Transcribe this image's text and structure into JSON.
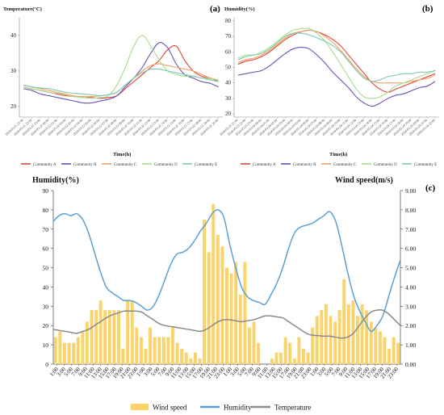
{
  "chart_data": [
    {
      "id": "a",
      "panel_label": "(a)",
      "type": "line",
      "ylabel": "Temperature(°C)",
      "xlabel": "Time(h)",
      "ylim": [
        17,
        45
      ],
      "y_ticks": [
        20,
        30,
        40
      ],
      "x_tick_labels": [
        "2024-05-21 21:00",
        "2024-05-21 22:00",
        "2024-05-21 23:00",
        "2024-05-22 00:00",
        "2024-05-22 01:00",
        "2024-05-22 02:00",
        "2024-05-22 03:00",
        "2024-05-22 04:00",
        "2024-05-22 05:00",
        "2024-05-22 06:00",
        "2024-05-22 07:00",
        "2024-05-22 08:00",
        "2024-05-22 09:00",
        "2024-05-22 10:00",
        "2024-05-22 11:00",
        "2024-05-22 12:00",
        "2024-05-22 13:00",
        "2024-05-22 14:00",
        "2024-05-22 15:00",
        "2024-05-22 16:00",
        "2024-05-22 17:00",
        "2024-05-22 18:00",
        "2024-05-22 19:00",
        "2024-05-22 20:00"
      ],
      "series": [
        {
          "name": "Community A",
          "color": "#e0443c",
          "values": [
            25.5,
            25,
            24.5,
            24,
            23.5,
            23,
            22.8,
            22.5,
            22.5,
            22.3,
            22.5,
            23,
            25,
            27,
            29,
            31,
            33,
            36,
            37,
            33,
            30,
            28.5,
            28,
            27
          ]
        },
        {
          "name": "Community B",
          "color": "#6a4fb8",
          "values": [
            25,
            24.5,
            23.5,
            23,
            22.5,
            22,
            21.5,
            21,
            21,
            21.5,
            22,
            23,
            25.5,
            28,
            31,
            35,
            38,
            36.5,
            32,
            29,
            28,
            27,
            26.5,
            25.5
          ]
        },
        {
          "name": "Community C",
          "color": "#f0a060",
          "values": [
            26,
            25.5,
            25,
            24.5,
            24,
            23.5,
            23,
            22.8,
            22.8,
            23,
            23.3,
            24,
            26,
            28,
            30,
            31.5,
            32,
            31.5,
            31,
            30.5,
            30,
            29,
            28,
            27.5
          ]
        },
        {
          "name": "Community D",
          "color": "#a8dc90",
          "values": [
            25.5,
            25,
            24.5,
            24,
            23.7,
            23.2,
            22.8,
            22.5,
            22.3,
            22.5,
            23,
            26,
            31,
            37,
            40,
            37,
            33,
            30,
            29,
            28.5,
            28.5,
            28,
            27.8,
            27.5
          ]
        },
        {
          "name": "Community E",
          "color": "#7cc8b0",
          "values": [
            26,
            25.5,
            25.2,
            25,
            24.5,
            24,
            23.7,
            23.5,
            23.3,
            23,
            23.3,
            24,
            26,
            28,
            29.5,
            30.5,
            30.5,
            30,
            29.5,
            29,
            28.5,
            28,
            27.5,
            27
          ]
        }
      ]
    },
    {
      "id": "b",
      "panel_label": "(b)",
      "type": "line",
      "ylabel": "Humidity(%)",
      "xlabel": "Time(h)",
      "ylim": [
        18,
        82
      ],
      "y_ticks": [
        20,
        30,
        40,
        50,
        60,
        70,
        80
      ],
      "x_tick_labels": [
        "2024-05-23 21:00",
        "2024-05-23 22:00",
        "2024-05-23 23:00",
        "2024-05-24 00:00",
        "2024-05-24 01:00",
        "2024-05-24 02:00",
        "2024-05-24 03:00",
        "2024-05-24 04:00",
        "2024-05-24 05:00",
        "2024-05-24 06:00",
        "2024-05-24 07:00",
        "2024-05-24 08:00",
        "2024-05-24 09:00",
        "2024-05-24 10:00",
        "2024-05-24 11:00",
        "2024-05-24 12:00",
        "2024-05-24 13:00",
        "2024-05-24 14:00",
        "2024-05-24 15:00",
        "2024-05-24 16:00",
        "2024-05-24 17:00",
        "2024-05-24 18:00",
        "2024-05-24 19:00",
        "2024-05-24 20:00",
        "2024-05-24 21:00",
        "2024-05-24 22:00"
      ],
      "series": [
        {
          "name": "Community A",
          "color": "#e0443c",
          "values": [
            52,
            54,
            55,
            57,
            60,
            64,
            68,
            71,
            73,
            74,
            73,
            71,
            68,
            64,
            58,
            52,
            46,
            40,
            36,
            34,
            36,
            38,
            40,
            42,
            44,
            46
          ]
        },
        {
          "name": "Community B",
          "color": "#6a4fb8",
          "values": [
            45,
            46,
            47,
            48,
            51,
            55,
            59,
            62,
            63,
            62,
            58,
            53,
            47,
            42,
            37,
            31,
            27,
            25,
            27,
            30,
            32,
            33,
            35,
            37,
            38,
            41
          ]
        },
        {
          "name": "Community C",
          "color": "#f0a060",
          "values": [
            53,
            55,
            56,
            58,
            61,
            65,
            69,
            72,
            73,
            74,
            73,
            70,
            66,
            61,
            55,
            49,
            44,
            41,
            40,
            40,
            40,
            40,
            41,
            42,
            43,
            45
          ]
        },
        {
          "name": "Community D",
          "color": "#a8dc90",
          "values": [
            56,
            58,
            58,
            60,
            63,
            67,
            71,
            74,
            75,
            75,
            72,
            67,
            60,
            52,
            44,
            36,
            31,
            30,
            31,
            34,
            38,
            40,
            42,
            44,
            46,
            48
          ]
        },
        {
          "name": "Community E",
          "color": "#7cc8b0",
          "values": [
            55,
            57,
            58,
            59,
            62,
            66,
            70,
            72,
            72,
            71,
            69,
            67,
            64,
            60,
            54,
            48,
            43,
            41,
            42,
            44,
            45,
            46,
            46,
            47,
            47,
            48
          ]
        }
      ]
    },
    {
      "id": "c",
      "panel_label": "(c)",
      "type": "bar",
      "ylabel_left": "Humidity(%)",
      "ylabel_right": "Wind speed(m/s)",
      "ylim_left": [
        0,
        90
      ],
      "ylim_right": [
        0,
        9
      ],
      "y_ticks_left": [
        0,
        10,
        20,
        30,
        40,
        50,
        60,
        70,
        80,
        90
      ],
      "y_tick_labels_right": [
        "0.00",
        "1.00",
        "2.00",
        "3.00",
        "4.00",
        "5.00",
        "6.00",
        "7.00",
        "8.00",
        "9.00"
      ],
      "x_tick_labels": [
        "1:00",
        "3:00",
        "5:00",
        "7:00",
        "9:00",
        "11:00",
        "13:00",
        "15:00",
        "17:00",
        "19:00",
        "21:00",
        "23:00",
        "1:00",
        "3:00",
        "5:00",
        "7:00",
        "9:00",
        "11:00",
        "13:00",
        "15:00",
        "17:00",
        "19:00",
        "21:00",
        "23:00",
        "1:00",
        "3:00",
        "5:00",
        "7:00",
        "9:00",
        "11:00",
        "13:00",
        "15:00",
        "17:00",
        "19:00",
        "21:00",
        "23:00",
        "1:00",
        "3:00",
        "5:00",
        "7:00",
        "9:00",
        "11:00",
        "13:00",
        "15:00",
        "17:00",
        "19:00",
        "21:00",
        "23:00"
      ],
      "wind_speed": [
        1.4,
        1.7,
        1.1,
        1.1,
        1.1,
        1.4,
        1.7,
        2.2,
        2.8,
        2.8,
        3.3,
        2.8,
        2.8,
        2.8,
        2.8,
        0.8,
        3.3,
        3.3,
        1.9,
        1.4,
        0.8,
        1.9,
        1.4,
        1.4,
        1.4,
        1.4,
        1.9,
        1.1,
        0.8,
        0.6,
        0.3,
        0.6,
        0.3,
        7.5,
        5.8,
        8.3,
        6.7,
        6.1,
        5.0,
        4.7,
        5.3,
        3.6,
        5.3,
        1.9,
        2.2,
        1.1,
        0.0,
        0.0,
        0.3,
        0.6,
        0.6,
        1.4,
        1.1,
        0.3,
        1.4,
        0.8,
        0.6,
        1.9,
        2.5,
        2.8,
        3.1,
        2.5,
        2.2,
        2.8,
        4.4,
        3.1,
        3.3,
        2.5,
        3.1,
        2.8,
        2.2,
        1.9,
        1.7,
        1.4,
        0.8,
        1.4,
        1.1
      ],
      "humidity": [
        74,
        77,
        78,
        77,
        78,
        75,
        68,
        58,
        48,
        40,
        37,
        35,
        33,
        33,
        32,
        30,
        28,
        30,
        36,
        44,
        52,
        57,
        58,
        60,
        64,
        69,
        73,
        78,
        80,
        76,
        62,
        50,
        40,
        35,
        33,
        32,
        31,
        36,
        42,
        50,
        60,
        68,
        71,
        72,
        73,
        75,
        77,
        79,
        74,
        62,
        48,
        36,
        28,
        22,
        17,
        20,
        25,
        35,
        45,
        54
      ],
      "temperature": [
        18,
        17.5,
        17,
        16.5,
        16,
        17,
        18,
        20,
        22,
        24,
        25.5,
        26.5,
        27.5,
        27.5,
        27.5,
        27,
        25,
        23,
        21,
        20,
        19.5,
        19,
        18.5,
        18,
        17.5,
        17,
        18,
        20,
        22,
        23,
        23,
        22.5,
        22,
        22.5,
        23,
        24,
        25,
        25,
        24.5,
        24,
        22,
        20,
        18,
        16,
        15,
        14.8,
        14.5,
        14.5,
        14,
        13.5,
        14,
        16,
        20,
        24,
        27,
        28,
        28,
        26,
        23,
        20
      ],
      "legend": [
        "Wind speed",
        "Humidity",
        "Temperature"
      ],
      "colors": {
        "wind": "#fad36a",
        "humidity": "#5aa0d6",
        "temperature": "#8a8a8a"
      }
    }
  ]
}
